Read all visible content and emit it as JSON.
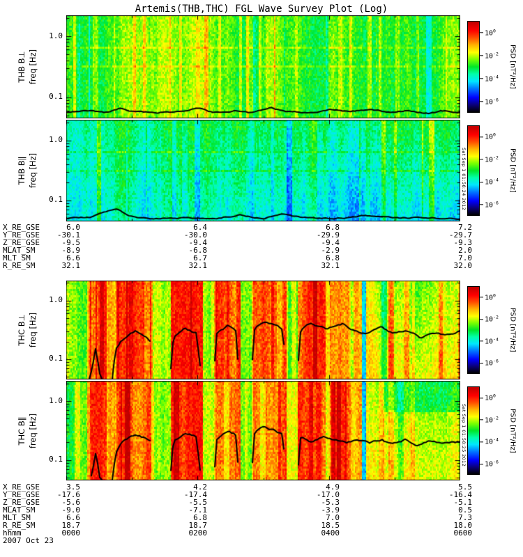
{
  "title": "Artemis(THB,THC) FGL Wave Survey Plot (Log)",
  "psd_label": "PSD [nT²/Hz]",
  "freq_ticks": [
    "1.0",
    "0.1"
  ],
  "colorbar_ticks": [
    {
      "base": "10",
      "exp": "0"
    },
    {
      "base": "10",
      "exp": "-2"
    },
    {
      "base": "10",
      "exp": "-4"
    },
    {
      "base": "10",
      "exp": "-6"
    }
  ],
  "panels": [
    {
      "name": "THB B⊥",
      "ylabel2": "freq [Hz]"
    },
    {
      "name": "THB B∥",
      "ylabel2": "freq [Hz]"
    },
    {
      "name": "THC B⊥",
      "ylabel2": "freq [Hz]"
    },
    {
      "name": "THC B∥",
      "ylabel2": "freq [Hz]"
    }
  ],
  "timestamps": [
    "Sat Sep 1 01:58:24 2012",
    "Sat Sep 1 01:58:25 2012"
  ],
  "chart_data": {
    "type": "heatmap",
    "subtype": "time-frequency wave power spectrogram, 4 stacked panels",
    "title": "Artemis(THB,THC) FGL Wave Survey Plot (Log)",
    "x_axis": {
      "label": "hhmm",
      "date": "2007 Oct 23",
      "tick_labels": [
        "0000",
        "0200",
        "0400",
        "0600"
      ],
      "range_hours": [
        0,
        6
      ]
    },
    "y_axis": {
      "label": "freq [Hz]",
      "scale": "log",
      "tick_labels": [
        "1.0",
        "0.1"
      ],
      "range_hz": [
        0.05,
        2.0
      ]
    },
    "z_axis": {
      "label": "PSD [nT²/Hz]",
      "scale": "log",
      "tick_exponents": [
        0,
        -2,
        -4,
        -6
      ]
    },
    "panels": [
      {
        "name": "THB B⊥",
        "summary": "moderate broadband power (green, ~10⁻³ nT²/Hz) across 0.05–2 Hz with intermittent yellow vertical enhancements; black cutoff trace near 0.06 Hz along panel bottom"
      },
      {
        "name": "THB B∥",
        "summary": "weaker compressional power (cyan/blue, ~10⁻⁴–10⁻⁵) with scattered green enhancements and darker blue at low frequency late in interval; black trace near panel bottom"
      },
      {
        "name": "THC B⊥",
        "summary": "intense bursty power (red, ≥10⁻¹) in repeated vertical bands separated by yellow lulls; black trace wandering 0.1–0.3 Hz with dropouts to the panel bottom between bursts"
      },
      {
        "name": "THC B∥",
        "summary": "intense bursty compressional power similar to B⊥; black trace near 0.1–0.25 Hz with dropouts; more yellow/green after ~0430"
      }
    ],
    "ephemeris_top": {
      "rows": [
        {
          "label": "X_RE_GSE",
          "values": [
            "6.0",
            "6.4",
            "6.8",
            "7.2"
          ]
        },
        {
          "label": "Y_RE_GSE",
          "values": [
            "-30.1",
            "-30.0",
            "-29.9",
            "-29.7"
          ]
        },
        {
          "label": "Z_RE_GSE",
          "values": [
            "-9.5",
            "-9.4",
            "-9.4",
            "-9.3"
          ]
        },
        {
          "label": "MLAT_SM",
          "values": [
            "-8.9",
            "-6.8",
            "-2.9",
            "2.0"
          ]
        },
        {
          "label": "MLT_SM",
          "values": [
            "6.6",
            "6.7",
            "6.8",
            "7.0"
          ]
        },
        {
          "label": "R_RE_SM",
          "values": [
            "32.1",
            "32.1",
            "32.1",
            "32.0"
          ]
        }
      ]
    },
    "ephemeris_bottom": {
      "rows": [
        {
          "label": "X_RE_GSE",
          "values": [
            "3.5",
            "4.2",
            "4.9",
            "5.5"
          ]
        },
        {
          "label": "Y_RE_GSE",
          "values": [
            "-17.6",
            "-17.4",
            "-17.0",
            "-16.4"
          ]
        },
        {
          "label": "Z_RE_GSE",
          "values": [
            "-5.6",
            "-5.5",
            "-5.3",
            "-5.1"
          ]
        },
        {
          "label": "MLAT_SM",
          "values": [
            "-9.0",
            "-7.1",
            "-3.9",
            "0.5"
          ]
        },
        {
          "label": "MLT_SM",
          "values": [
            "6.6",
            "6.8",
            "7.0",
            "7.3"
          ]
        },
        {
          "label": "R_RE_SM",
          "values": [
            "18.7",
            "18.7",
            "18.5",
            "18.0"
          ]
        },
        {
          "label": "hhmm",
          "values": [
            "0000",
            "0200",
            "0400",
            "0600"
          ]
        }
      ],
      "date": "2007 Oct 23"
    }
  }
}
